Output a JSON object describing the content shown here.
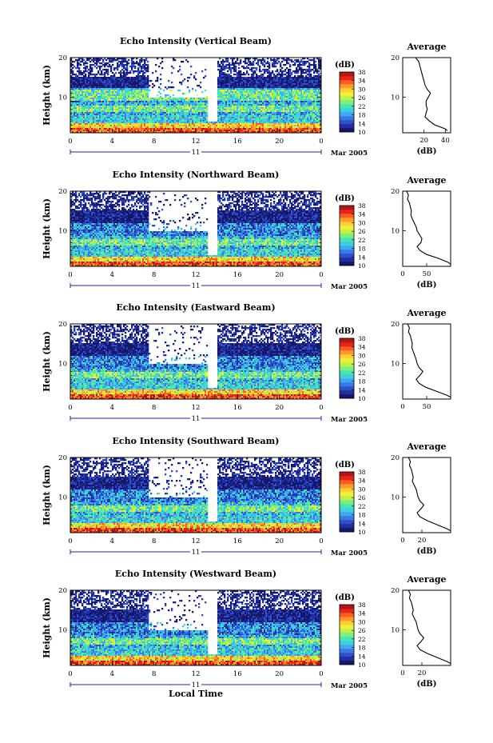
{
  "colors": {
    "jet": [
      "#16166b",
      "#1f2f9e",
      "#2f50c8",
      "#3a78e6",
      "#3ea8f0",
      "#3dd0e0",
      "#46e6b0",
      "#7cf07a",
      "#bff04a",
      "#eef03c",
      "#ffcf33",
      "#ff9a2a",
      "#ff5a22",
      "#e3261c",
      "#b31414"
    ],
    "frame": "#000000",
    "time_axis": "#2222aa"
  },
  "chart_data": [
    {
      "type": "heatmap",
      "title": "Echo Intensity (Vertical Beam)",
      "ylabel": "Height (km)",
      "xlabel": "",
      "x_ticks": [
        "0",
        "4",
        "8",
        "12",
        "16",
        "20",
        "0"
      ],
      "y_ticks": [
        "10",
        "20"
      ],
      "xlim": [
        0,
        24
      ],
      "ylim": [
        1,
        20
      ],
      "date_label": "11",
      "month_label": "Mar 2005",
      "colorbar": {
        "unit": "(dB)",
        "ticks": [
          "10",
          "14",
          "18",
          "22",
          "26",
          "30",
          "34",
          "38"
        ],
        "range": [
          10,
          38
        ]
      },
      "average_profile": {
        "title": "Average",
        "xlabel": "(dB)",
        "x_ticks": [
          "20",
          "40"
        ],
        "xlim": [
          0,
          45
        ],
        "y_ticks": [
          "10",
          "20"
        ],
        "height_km": [
          20,
          19,
          18,
          17,
          16,
          15,
          14,
          13,
          12,
          11,
          10,
          9,
          8,
          7,
          6,
          5,
          4,
          3,
          2,
          1.5
        ],
        "values_db": [
          12,
          15,
          16,
          17,
          18,
          19,
          20,
          21,
          23,
          26,
          24,
          22,
          22,
          23,
          22,
          21,
          25,
          30,
          40,
          42
        ]
      }
    },
    {
      "type": "heatmap",
      "title": "Echo Intensity (Northward Beam)",
      "ylabel": "Height (km)",
      "xlabel": "",
      "x_ticks": [
        "0",
        "4",
        "8",
        "12",
        "16",
        "20",
        "0"
      ],
      "y_ticks": [
        "10",
        "20"
      ],
      "xlim": [
        0,
        24
      ],
      "ylim": [
        1,
        20
      ],
      "date_label": "11",
      "month_label": "Mar 2005",
      "colorbar": {
        "unit": "(dB)",
        "ticks": [
          "10",
          "14",
          "18",
          "22",
          "26",
          "30",
          "34",
          "38"
        ],
        "range": [
          10,
          38
        ]
      },
      "average_profile": {
        "title": "Average",
        "xlabel": "(dB)",
        "x_ticks": [
          "0",
          "50"
        ],
        "xlim": [
          0,
          100
        ],
        "y_ticks": [
          "10",
          "20"
        ],
        "height_km": [
          20,
          19,
          18,
          17,
          16,
          15,
          14,
          13,
          12,
          11,
          10,
          9,
          8,
          7,
          6,
          5,
          4,
          3,
          2,
          1.5
        ],
        "values_db": [
          8,
          12,
          10,
          14,
          16,
          18,
          17,
          20,
          24,
          28,
          30,
          35,
          40,
          38,
          30,
          36,
          50,
          75,
          95,
          100
        ]
      }
    },
    {
      "type": "heatmap",
      "title": "Echo Intensity (Eastward Beam)",
      "ylabel": "Height (km)",
      "xlabel": "",
      "x_ticks": [
        "0",
        "4",
        "8",
        "12",
        "16",
        "20",
        "0"
      ],
      "y_ticks": [
        "10",
        "20"
      ],
      "xlim": [
        0,
        24
      ],
      "ylim": [
        1,
        20
      ],
      "date_label": "11",
      "month_label": "Mar 2005",
      "colorbar": {
        "unit": "(dB)",
        "ticks": [
          "10",
          "14",
          "18",
          "22",
          "26",
          "30",
          "34",
          "38"
        ],
        "range": [
          10,
          38
        ]
      },
      "average_profile": {
        "title": "Average",
        "xlabel": "",
        "x_ticks": [
          "0",
          "50"
        ],
        "xlim": [
          0,
          100
        ],
        "y_ticks": [
          "10",
          "20"
        ],
        "height_km": [
          20,
          19,
          18,
          17,
          16,
          15,
          14,
          13,
          12,
          11,
          10,
          9,
          8,
          7,
          6,
          5,
          4,
          3,
          2,
          1.5
        ],
        "values_db": [
          10,
          14,
          12,
          16,
          18,
          20,
          19,
          22,
          25,
          28,
          30,
          34,
          42,
          36,
          28,
          34,
          48,
          70,
          92,
          100
        ]
      }
    },
    {
      "type": "heatmap",
      "title": "Echo Intensity (Southward Beam)",
      "ylabel": "Height (km)",
      "xlabel": "",
      "x_ticks": [
        "0",
        "4",
        "8",
        "12",
        "16",
        "20",
        "0"
      ],
      "y_ticks": [
        "10",
        "20"
      ],
      "xlim": [
        0,
        24
      ],
      "ylim": [
        1,
        20
      ],
      "date_label": "11",
      "month_label": "Mar 2005",
      "colorbar": {
        "unit": "(dB)",
        "ticks": [
          "10",
          "14",
          "18",
          "22",
          "26",
          "30",
          "34",
          "38"
        ],
        "range": [
          10,
          38
        ]
      },
      "average_profile": {
        "title": "Average",
        "xlabel": "(dB)",
        "x_ticks": [
          "0",
          "20"
        ],
        "xlim": [
          0,
          50
        ],
        "y_ticks": [
          "10",
          "20"
        ],
        "height_km": [
          20,
          19,
          18,
          17,
          16,
          15,
          14,
          13,
          12,
          11,
          10,
          9,
          8,
          7,
          6,
          5,
          4,
          3,
          2,
          1.5
        ],
        "values_db": [
          6,
          8,
          7,
          9,
          10,
          11,
          10,
          12,
          14,
          15,
          16,
          18,
          22,
          19,
          15,
          18,
          26,
          36,
          46,
          50
        ]
      }
    },
    {
      "type": "heatmap",
      "title": "Echo Intensity (Westward Beam)",
      "ylabel": "Height (km)",
      "xlabel": "Local Time",
      "x_ticks": [
        "0",
        "4",
        "8",
        "12",
        "16",
        "20",
        "0"
      ],
      "y_ticks": [
        "10",
        "20"
      ],
      "xlim": [
        0,
        24
      ],
      "ylim": [
        1,
        20
      ],
      "date_label": "11",
      "month_label": "Mar 2005",
      "colorbar": {
        "unit": "(dB)",
        "ticks": [
          "10",
          "14",
          "18",
          "22",
          "26",
          "30",
          "34",
          "38"
        ],
        "range": [
          10,
          38
        ]
      },
      "average_profile": {
        "title": "Average",
        "xlabel": "(dB)",
        "x_ticks": [
          "0",
          "20"
        ],
        "xlim": [
          0,
          50
        ],
        "y_ticks": [
          "10",
          "20"
        ],
        "height_km": [
          20,
          19,
          18,
          17,
          16,
          15,
          14,
          13,
          12,
          11,
          10,
          9,
          8,
          7,
          6,
          5,
          4,
          3,
          2,
          1.5
        ],
        "values_db": [
          6,
          8,
          7,
          9,
          10,
          11,
          10,
          12,
          14,
          15,
          16,
          18,
          22,
          19,
          15,
          18,
          26,
          36,
          46,
          50
        ]
      }
    }
  ]
}
